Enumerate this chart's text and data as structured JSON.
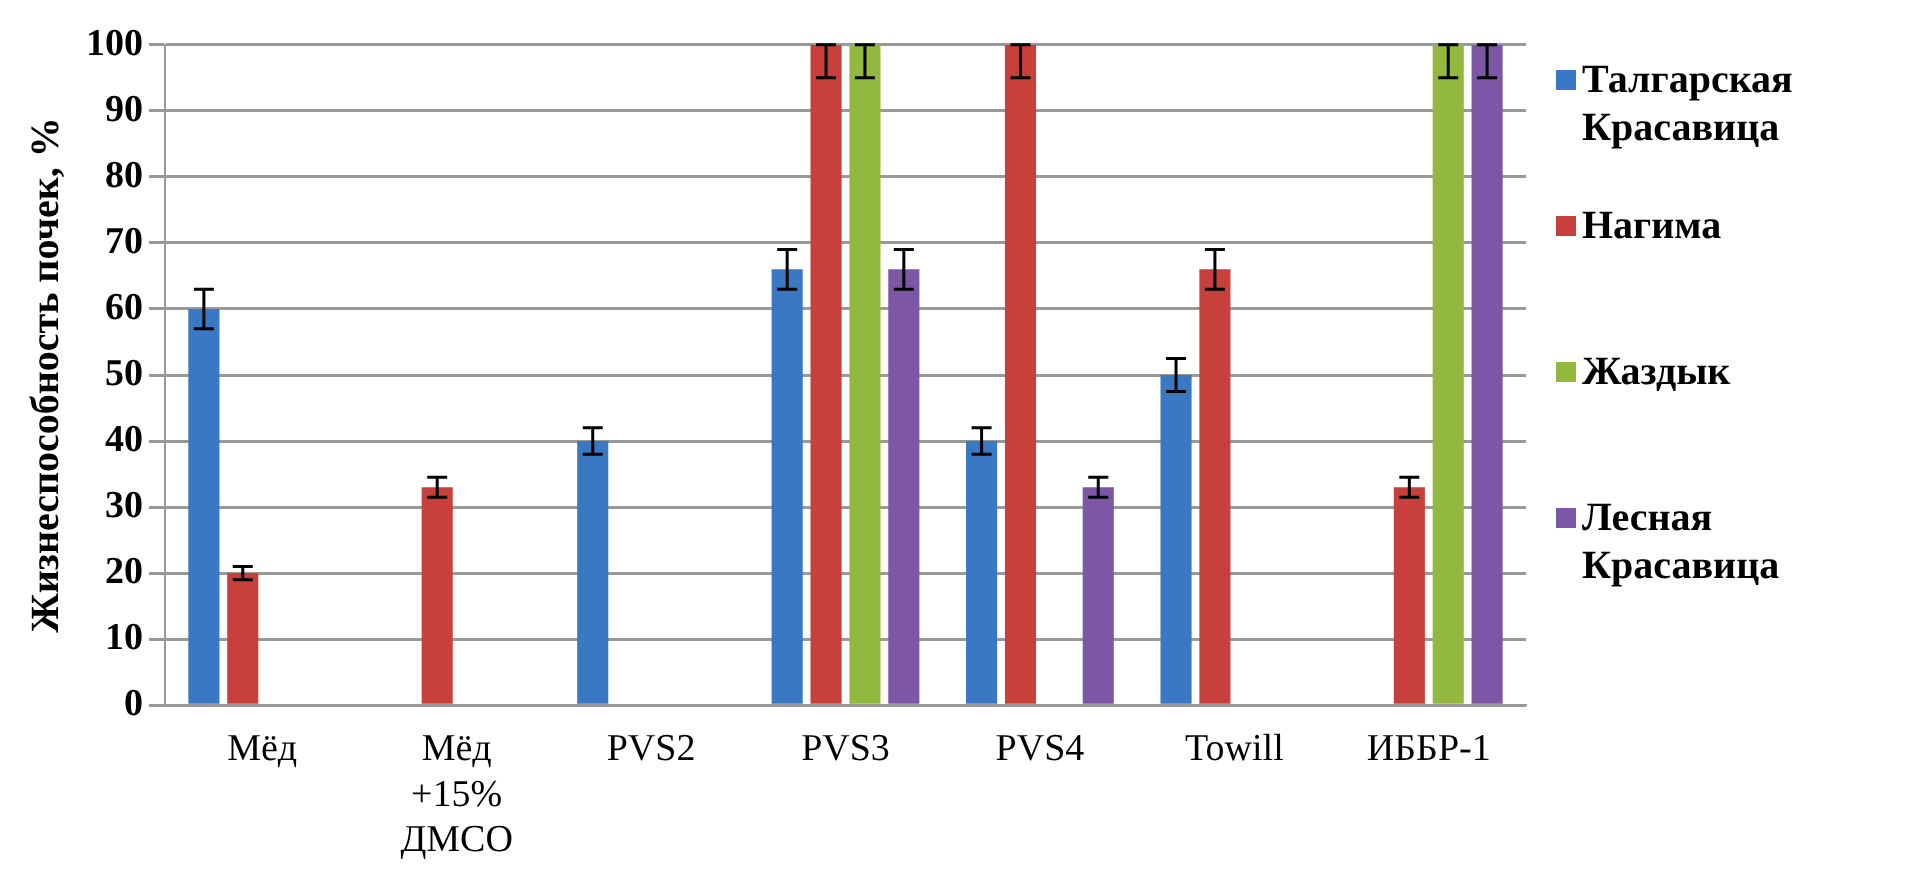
{
  "chart_data": {
    "type": "bar",
    "ylabel": "Жизнеспособность почек, %",
    "categories": [
      "Мёд",
      "Мёд +15% ДМСО",
      "PVS2",
      "PVS3",
      "PVS4",
      "Towill",
      "ИББР-1"
    ],
    "ylim": [
      0,
      100
    ],
    "yticks": [
      0,
      10,
      20,
      30,
      40,
      50,
      60,
      70,
      80,
      90,
      100
    ],
    "grid": "y",
    "legend": "right",
    "series": [
      {
        "name": "Талгарская Красавица",
        "color": "#3a78c3",
        "values": [
          60,
          0,
          40,
          66,
          40,
          50,
          0
        ],
        "errors": [
          3,
          null,
          2,
          3,
          2,
          2.5,
          null
        ]
      },
      {
        "name": "Нагима",
        "color": "#c8403c",
        "values": [
          20,
          33,
          0,
          100,
          100,
          66,
          33
        ],
        "errors": [
          1,
          1.5,
          null,
          [
            95,
            100
          ],
          [
            95,
            100
          ],
          3,
          1.5
        ]
      },
      {
        "name": "Жаздык",
        "color": "#93b83f",
        "values": [
          0,
          0,
          0,
          100,
          0,
          0,
          100
        ],
        "errors": [
          null,
          null,
          null,
          [
            95,
            100
          ],
          null,
          null,
          [
            95,
            100
          ]
        ]
      },
      {
        "name": "Лесная Красавица",
        "color": "#7b57a6",
        "values": [
          0,
          0,
          0,
          66,
          33,
          0,
          100
        ],
        "errors": [
          null,
          null,
          null,
          3,
          1.5,
          null,
          [
            95,
            100
          ]
        ]
      }
    ]
  }
}
